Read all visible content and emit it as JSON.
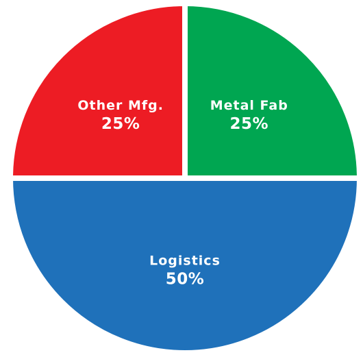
{
  "chart_data": {
    "type": "pie",
    "start": "top",
    "direction": "clockwise",
    "separator_color": "#ffffff",
    "slices": [
      {
        "label": "Metal Fab",
        "value": 25,
        "value_label": "25%",
        "color": "#00A651"
      },
      {
        "label": "Logistics",
        "value": 50,
        "value_label": "50%",
        "color": "#1F71BA"
      },
      {
        "label": "Other Mfg.",
        "value": 25,
        "value_label": "25%",
        "color": "#ED1C24"
      }
    ]
  }
}
